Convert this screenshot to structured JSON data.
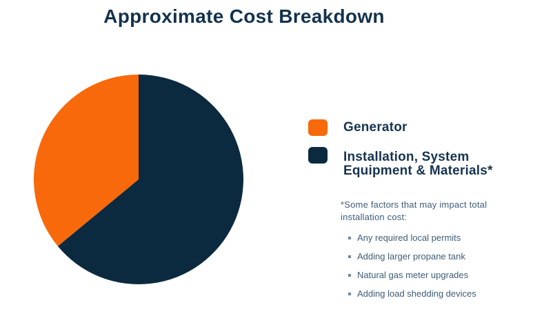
{
  "title": "Approximate Cost Breakdown",
  "colors": {
    "background": "#FFFFFF",
    "orange": "#F8690B",
    "navy": "#0C2A3F",
    "title_text": "#14324C",
    "legend_text": "#173450",
    "footnote_text": "#3C5C78",
    "bullet_marker": "#6C89A1"
  },
  "chart_data": {
    "type": "pie",
    "title": "Approximate Cost Breakdown",
    "labels": [
      "Generator",
      "Installation, System Equipment & Materials*"
    ],
    "values": [
      36,
      64
    ],
    "units": "percent (estimated from slice angles; no data labels shown in chart)",
    "colors": [
      "#F8690B",
      "#0C2A3F"
    ],
    "start_angle_deg": -90,
    "direction": "counterclockwise",
    "legend_position": "right",
    "data_labels_shown": false
  },
  "legend": {
    "items": [
      {
        "label": "Generator",
        "color": "#F8690B"
      },
      {
        "label": "Installation, System Equipment & Materials*",
        "color": "#0C2A3F"
      }
    ]
  },
  "footnote": {
    "heading": "*Some factors that may impact total installation cost:",
    "bullets": [
      "Any required local permits",
      "Adding larger propane tank",
      "Natural gas meter upgrades",
      "Adding load shedding devices"
    ]
  }
}
